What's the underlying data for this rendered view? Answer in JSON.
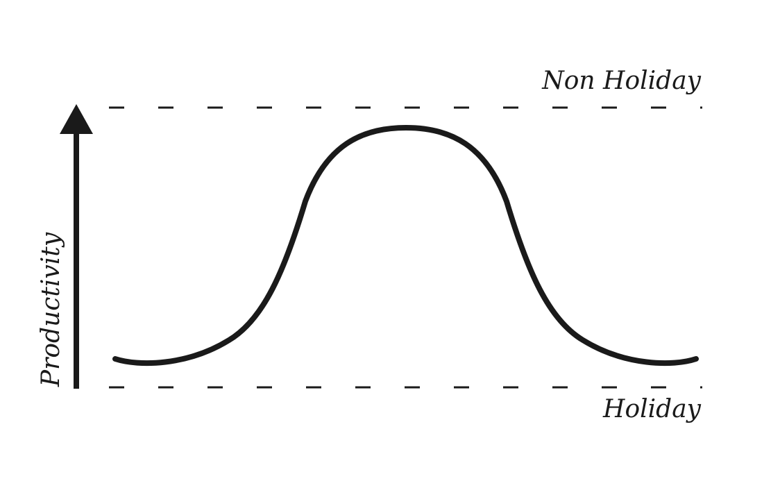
{
  "diagram": {
    "top_reference_label": "Non Holiday",
    "bottom_reference_label": "Holiday",
    "y_axis_label": "Productivity",
    "colors": {
      "ink": "#1a1a1a",
      "background": "#ffffff"
    },
    "curve_shape": "bell"
  }
}
